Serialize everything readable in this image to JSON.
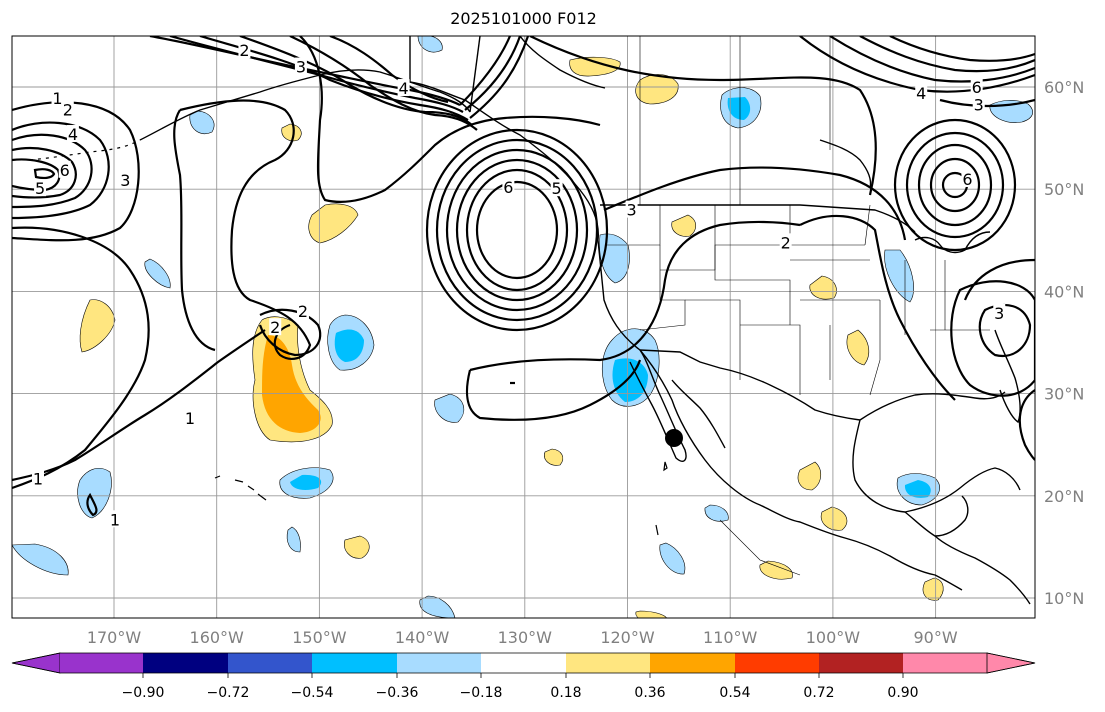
{
  "title": "2025101000 F012",
  "lon_ticks": [
    "170°W",
    "160°W",
    "150°W",
    "140°W",
    "130°W",
    "120°W",
    "110°W",
    "100°W",
    "90°W"
  ],
  "lat_ticks": [
    "60°N",
    "50°N",
    "40°N",
    "30°N",
    "20°N",
    "10°N"
  ],
  "colorbar": {
    "colors": [
      "#9933cc",
      "#000080",
      "#3355cc",
      "#00bfff",
      "#a8dcff",
      "#ffffff",
      "#ffe680",
      "#ffa500",
      "#ff3c00",
      "#b22222",
      "#ff88aa"
    ],
    "labels": [
      "−0.90",
      "−0.72",
      "−0.54",
      "−0.36",
      "−0.18",
      "0.18",
      "0.36",
      "0.54",
      "0.72",
      "0.90"
    ]
  },
  "contour_labels": [
    {
      "text": "1",
      "lon": -175.5,
      "lat": 58.9
    },
    {
      "text": "2",
      "lon": -174.5,
      "lat": 57.8
    },
    {
      "text": "4",
      "lon": -174.0,
      "lat": 55.4
    },
    {
      "text": "5",
      "lon": -177.2,
      "lat": 50.1
    },
    {
      "text": "3",
      "lon": -168.9,
      "lat": 50.9
    },
    {
      "text": "6",
      "lon": -174.8,
      "lat": 51.9
    },
    {
      "text": "2",
      "lon": -157.3,
      "lat": 63.6
    },
    {
      "text": "3",
      "lon": -151.8,
      "lat": 62.0
    },
    {
      "text": "4",
      "lon": -141.8,
      "lat": 59.9
    },
    {
      "text": "2",
      "lon": -151.6,
      "lat": 38.1
    },
    {
      "text": "2",
      "lon": -154.3,
      "lat": 36.5
    },
    {
      "text": "1",
      "lon": -162.6,
      "lat": 27.6
    },
    {
      "text": "1",
      "lon": -177.4,
      "lat": 21.7
    },
    {
      "text": "1",
      "lon": -169.9,
      "lat": 17.7
    },
    {
      "text": "6",
      "lon": -131.6,
      "lat": 50.2
    },
    {
      "text": "5",
      "lon": -126.9,
      "lat": 50.1
    },
    {
      "text": "3",
      "lon": -119.6,
      "lat": 48.0
    },
    {
      "text": "2",
      "lon": -104.6,
      "lat": 44.8
    },
    {
      "text": "4",
      "lon": -91.4,
      "lat": 59.4
    },
    {
      "text": "6",
      "lon": -86.0,
      "lat": 60.0
    },
    {
      "text": "3",
      "lon": -85.8,
      "lat": 58.3
    },
    {
      "text": "6",
      "lon": -86.9,
      "lat": 51.0
    },
    {
      "text": "3",
      "lon": -83.8,
      "lat": 37.9
    }
  ]
}
